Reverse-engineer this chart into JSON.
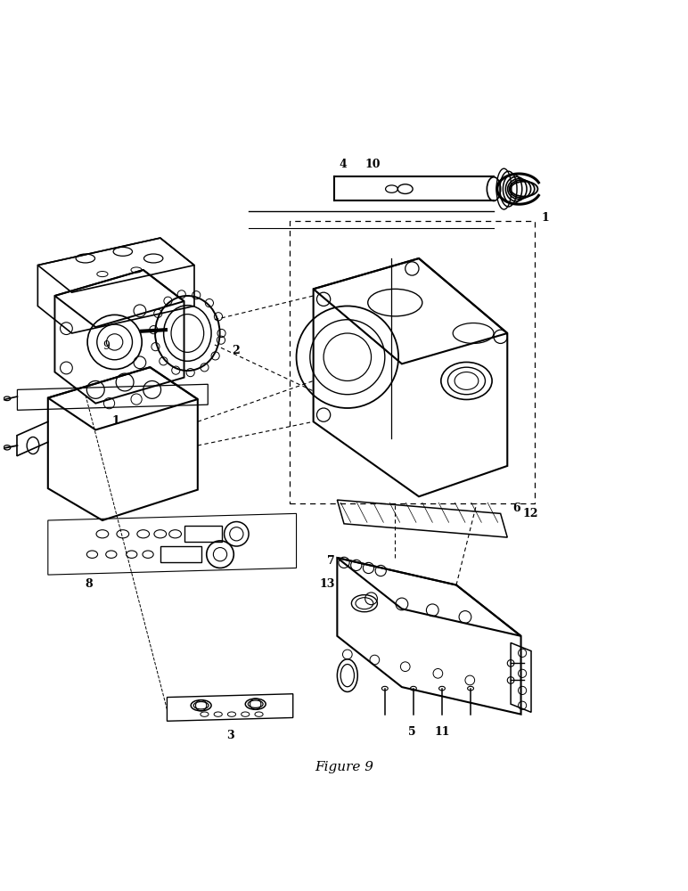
{
  "title": "Figure 9",
  "title_fontsize": 11,
  "bg_color": "#ffffff",
  "line_color": "#000000",
  "figsize": [
    7.72,
    10.0
  ],
  "dpi": 100
}
